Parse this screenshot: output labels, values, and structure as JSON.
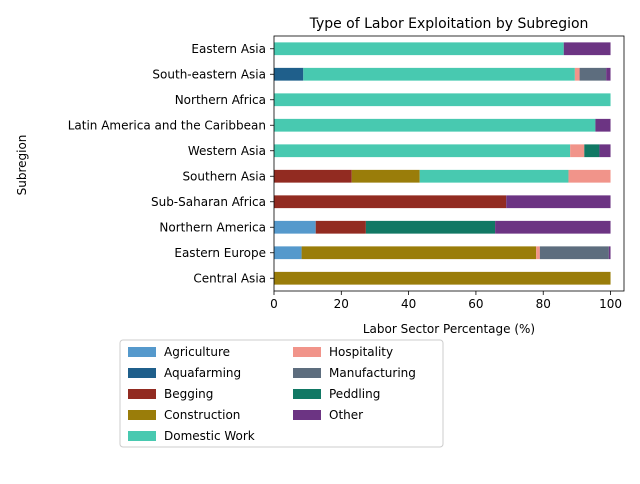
{
  "chart_data": {
    "type": "bar",
    "orientation": "horizontal",
    "stacked": true,
    "title": "Type of Labor Exploitation by Subregion",
    "xlabel": "Labor Sector Percentage (%)",
    "ylabel": "Subregion",
    "xlim": [
      0,
      104
    ],
    "xticks": [
      0,
      20,
      40,
      60,
      80,
      100
    ],
    "grid": false,
    "legend_position": "bottom",
    "categories": [
      "Central Asia",
      "Eastern Europe",
      "Northern America",
      "Sub-Saharan Africa",
      "Southern Asia",
      "Western Asia",
      "Latin America and the Caribbean",
      "Northern Africa",
      "South-eastern Asia",
      "Eastern Asia"
    ],
    "series": [
      {
        "name": "Agriculture",
        "color": "#5599cc",
        "values": [
          0,
          8.2,
          12.4,
          0,
          0,
          0,
          0,
          0,
          0,
          0
        ]
      },
      {
        "name": "Aquafarming",
        "color": "#1f5f8b",
        "values": [
          0,
          0,
          0,
          0,
          0,
          0,
          0,
          0,
          8.7,
          0
        ]
      },
      {
        "name": "Begging",
        "color": "#922b21",
        "values": [
          0,
          0,
          14.9,
          69.0,
          23.1,
          0,
          0,
          0,
          0,
          0
        ]
      },
      {
        "name": "Construction",
        "color": "#9a7d0a",
        "values": [
          100,
          69.7,
          0,
          0,
          20.2,
          0,
          0,
          0,
          0,
          0
        ]
      },
      {
        "name": "Domestic Work",
        "color": "#48c9b0",
        "values": [
          0,
          0,
          0,
          0,
          44.2,
          88.0,
          95.5,
          100,
          80.7,
          86.1
        ]
      },
      {
        "name": "Hospitality",
        "color": "#f1948a",
        "values": [
          0,
          1.1,
          0,
          0,
          12.5,
          4.2,
          0,
          0,
          1.4,
          0
        ]
      },
      {
        "name": "Manufacturing",
        "color": "#5d6d7e",
        "values": [
          0,
          20.5,
          0,
          0,
          0,
          0,
          0,
          0,
          7.9,
          0
        ]
      },
      {
        "name": "Peddling",
        "color": "#117864",
        "values": [
          0,
          0,
          38.4,
          0,
          0,
          4.5,
          0,
          0,
          0,
          0
        ]
      },
      {
        "name": "Other",
        "color": "#6c3483",
        "values": [
          0,
          0.5,
          34.3,
          31.0,
          0,
          3.3,
          4.5,
          0,
          1.3,
          13.9
        ]
      }
    ]
  }
}
